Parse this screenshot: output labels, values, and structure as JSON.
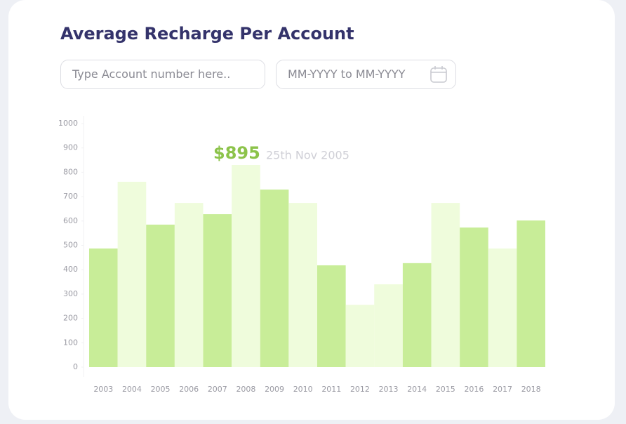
{
  "inputs": {
    "account_placeholder": "Type Account number here..",
    "date_placeholder": "MM-YYYY to MM-YYYY"
  },
  "chart_data": {
    "type": "bar",
    "title": "Average Recharge Per Account",
    "categories": [
      "2003",
      "2004",
      "2005",
      "2006",
      "2007",
      "2008",
      "2009",
      "2010",
      "2011",
      "2012",
      "2013",
      "2014",
      "2015",
      "2016",
      "2017",
      "2018"
    ],
    "values": [
      487,
      761,
      585,
      674,
      628,
      830,
      729,
      674,
      418,
      256,
      340,
      427,
      674,
      573,
      487,
      602
    ],
    "colors": [
      "#c8ed98",
      "#effcdc",
      "#c8ed98",
      "#effcdc",
      "#c8ed98",
      "#effcdc",
      "#c8ed98",
      "#effcdc",
      "#c8ed98",
      "#effcdc",
      "#effcdc",
      "#c8ed98",
      "#effcdc",
      "#c8ed98",
      "#effcdc",
      "#c8ed98"
    ],
    "ylim": [
      0,
      1000
    ],
    "yticks": [
      0,
      100,
      200,
      300,
      400,
      500,
      600,
      700,
      800,
      900,
      1000
    ],
    "annotation": {
      "amount": "$895",
      "date": "25th Nov 2005"
    }
  }
}
